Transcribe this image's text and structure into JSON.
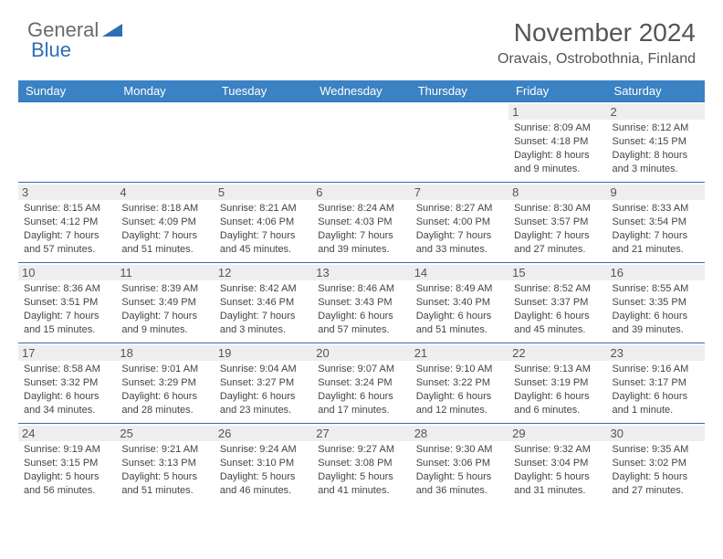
{
  "logo": {
    "part1": "General",
    "part2": "Blue"
  },
  "title": "November 2024",
  "location": "Oravais, Ostrobothnia, Finland",
  "colors": {
    "header_bg": "#3b82c4",
    "header_text": "#ffffff",
    "border": "#2d6fb5",
    "daynum_bg": "#eeeeee",
    "text": "#444444",
    "logo_gray": "#6a6a6a",
    "logo_blue": "#2d6fb5"
  },
  "weekdays": [
    "Sunday",
    "Monday",
    "Tuesday",
    "Wednesday",
    "Thursday",
    "Friday",
    "Saturday"
  ],
  "weeks": [
    [
      {
        "n": "",
        "sr": "",
        "ss": "",
        "dl": ""
      },
      {
        "n": "",
        "sr": "",
        "ss": "",
        "dl": ""
      },
      {
        "n": "",
        "sr": "",
        "ss": "",
        "dl": ""
      },
      {
        "n": "",
        "sr": "",
        "ss": "",
        "dl": ""
      },
      {
        "n": "",
        "sr": "",
        "ss": "",
        "dl": ""
      },
      {
        "n": "1",
        "sr": "Sunrise: 8:09 AM",
        "ss": "Sunset: 4:18 PM",
        "dl": "Daylight: 8 hours and 9 minutes."
      },
      {
        "n": "2",
        "sr": "Sunrise: 8:12 AM",
        "ss": "Sunset: 4:15 PM",
        "dl": "Daylight: 8 hours and 3 minutes."
      }
    ],
    [
      {
        "n": "3",
        "sr": "Sunrise: 8:15 AM",
        "ss": "Sunset: 4:12 PM",
        "dl": "Daylight: 7 hours and 57 minutes."
      },
      {
        "n": "4",
        "sr": "Sunrise: 8:18 AM",
        "ss": "Sunset: 4:09 PM",
        "dl": "Daylight: 7 hours and 51 minutes."
      },
      {
        "n": "5",
        "sr": "Sunrise: 8:21 AM",
        "ss": "Sunset: 4:06 PM",
        "dl": "Daylight: 7 hours and 45 minutes."
      },
      {
        "n": "6",
        "sr": "Sunrise: 8:24 AM",
        "ss": "Sunset: 4:03 PM",
        "dl": "Daylight: 7 hours and 39 minutes."
      },
      {
        "n": "7",
        "sr": "Sunrise: 8:27 AM",
        "ss": "Sunset: 4:00 PM",
        "dl": "Daylight: 7 hours and 33 minutes."
      },
      {
        "n": "8",
        "sr": "Sunrise: 8:30 AM",
        "ss": "Sunset: 3:57 PM",
        "dl": "Daylight: 7 hours and 27 minutes."
      },
      {
        "n": "9",
        "sr": "Sunrise: 8:33 AM",
        "ss": "Sunset: 3:54 PM",
        "dl": "Daylight: 7 hours and 21 minutes."
      }
    ],
    [
      {
        "n": "10",
        "sr": "Sunrise: 8:36 AM",
        "ss": "Sunset: 3:51 PM",
        "dl": "Daylight: 7 hours and 15 minutes."
      },
      {
        "n": "11",
        "sr": "Sunrise: 8:39 AM",
        "ss": "Sunset: 3:49 PM",
        "dl": "Daylight: 7 hours and 9 minutes."
      },
      {
        "n": "12",
        "sr": "Sunrise: 8:42 AM",
        "ss": "Sunset: 3:46 PM",
        "dl": "Daylight: 7 hours and 3 minutes."
      },
      {
        "n": "13",
        "sr": "Sunrise: 8:46 AM",
        "ss": "Sunset: 3:43 PM",
        "dl": "Daylight: 6 hours and 57 minutes."
      },
      {
        "n": "14",
        "sr": "Sunrise: 8:49 AM",
        "ss": "Sunset: 3:40 PM",
        "dl": "Daylight: 6 hours and 51 minutes."
      },
      {
        "n": "15",
        "sr": "Sunrise: 8:52 AM",
        "ss": "Sunset: 3:37 PM",
        "dl": "Daylight: 6 hours and 45 minutes."
      },
      {
        "n": "16",
        "sr": "Sunrise: 8:55 AM",
        "ss": "Sunset: 3:35 PM",
        "dl": "Daylight: 6 hours and 39 minutes."
      }
    ],
    [
      {
        "n": "17",
        "sr": "Sunrise: 8:58 AM",
        "ss": "Sunset: 3:32 PM",
        "dl": "Daylight: 6 hours and 34 minutes."
      },
      {
        "n": "18",
        "sr": "Sunrise: 9:01 AM",
        "ss": "Sunset: 3:29 PM",
        "dl": "Daylight: 6 hours and 28 minutes."
      },
      {
        "n": "19",
        "sr": "Sunrise: 9:04 AM",
        "ss": "Sunset: 3:27 PM",
        "dl": "Daylight: 6 hours and 23 minutes."
      },
      {
        "n": "20",
        "sr": "Sunrise: 9:07 AM",
        "ss": "Sunset: 3:24 PM",
        "dl": "Daylight: 6 hours and 17 minutes."
      },
      {
        "n": "21",
        "sr": "Sunrise: 9:10 AM",
        "ss": "Sunset: 3:22 PM",
        "dl": "Daylight: 6 hours and 12 minutes."
      },
      {
        "n": "22",
        "sr": "Sunrise: 9:13 AM",
        "ss": "Sunset: 3:19 PM",
        "dl": "Daylight: 6 hours and 6 minutes."
      },
      {
        "n": "23",
        "sr": "Sunrise: 9:16 AM",
        "ss": "Sunset: 3:17 PM",
        "dl": "Daylight: 6 hours and 1 minute."
      }
    ],
    [
      {
        "n": "24",
        "sr": "Sunrise: 9:19 AM",
        "ss": "Sunset: 3:15 PM",
        "dl": "Daylight: 5 hours and 56 minutes."
      },
      {
        "n": "25",
        "sr": "Sunrise: 9:21 AM",
        "ss": "Sunset: 3:13 PM",
        "dl": "Daylight: 5 hours and 51 minutes."
      },
      {
        "n": "26",
        "sr": "Sunrise: 9:24 AM",
        "ss": "Sunset: 3:10 PM",
        "dl": "Daylight: 5 hours and 46 minutes."
      },
      {
        "n": "27",
        "sr": "Sunrise: 9:27 AM",
        "ss": "Sunset: 3:08 PM",
        "dl": "Daylight: 5 hours and 41 minutes."
      },
      {
        "n": "28",
        "sr": "Sunrise: 9:30 AM",
        "ss": "Sunset: 3:06 PM",
        "dl": "Daylight: 5 hours and 36 minutes."
      },
      {
        "n": "29",
        "sr": "Sunrise: 9:32 AM",
        "ss": "Sunset: 3:04 PM",
        "dl": "Daylight: 5 hours and 31 minutes."
      },
      {
        "n": "30",
        "sr": "Sunrise: 9:35 AM",
        "ss": "Sunset: 3:02 PM",
        "dl": "Daylight: 5 hours and 27 minutes."
      }
    ]
  ]
}
